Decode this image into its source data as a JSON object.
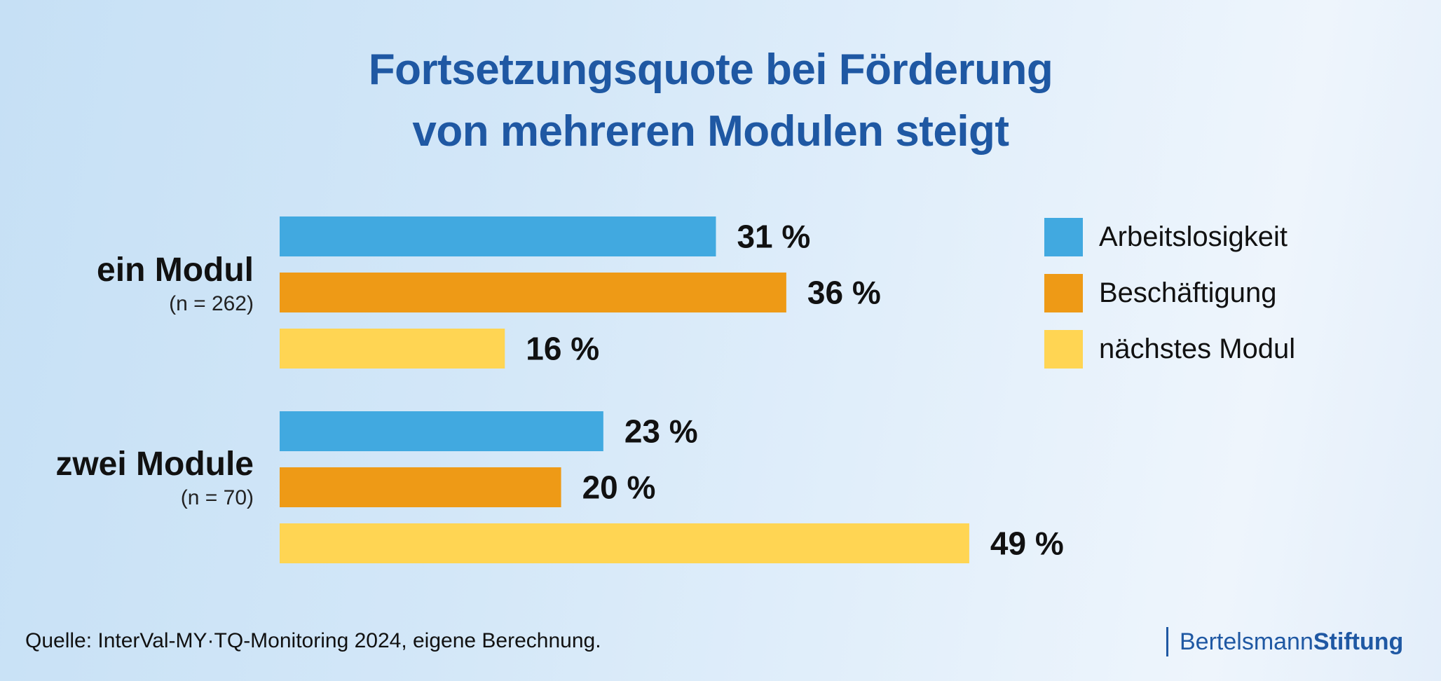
{
  "title": {
    "line1": "Fortsetzungsquote bei Förderung",
    "line2": "von mehreren Modulen steigt"
  },
  "colors": {
    "Arbeitslosigkeit": "#41a9e0",
    "Beschäftigung": "#ee9a16",
    "nächstes Modul": "#ffd553",
    "title": "#1f58a3"
  },
  "chart_data": {
    "type": "bar",
    "orientation": "horizontal",
    "title": "Fortsetzungsquote bei Förderung von mehreren Modulen steigt",
    "xlabel": "",
    "ylabel": "",
    "unit": "%",
    "xlim": [
      0,
      50
    ],
    "grid": false,
    "legend_position": "right",
    "categories": [
      {
        "name": "ein Modul",
        "n_label": "(n = 262)"
      },
      {
        "name": "zwei Module",
        "n_label": "(n = 70)"
      }
    ],
    "series": [
      {
        "name": "Arbeitslosigkeit",
        "values": [
          31,
          23
        ],
        "labels": [
          "31 %",
          "23 %"
        ]
      },
      {
        "name": "Beschäftigung",
        "values": [
          36,
          20
        ],
        "labels": [
          "36 %",
          "20 %"
        ]
      },
      {
        "name": "nächstes Modul",
        "values": [
          16,
          49
        ],
        "labels": [
          "16 %",
          "49 %"
        ]
      }
    ]
  },
  "legend": [
    {
      "label": "Arbeitslosigkeit"
    },
    {
      "label": "Beschäftigung"
    },
    {
      "label": "nächstes Modul"
    }
  ],
  "source": "Quelle: InterVal-MY·TQ-Monitoring 2024, eigene Berechnung.",
  "logo": {
    "part1": "Bertelsmann",
    "part2": "Stiftung"
  }
}
